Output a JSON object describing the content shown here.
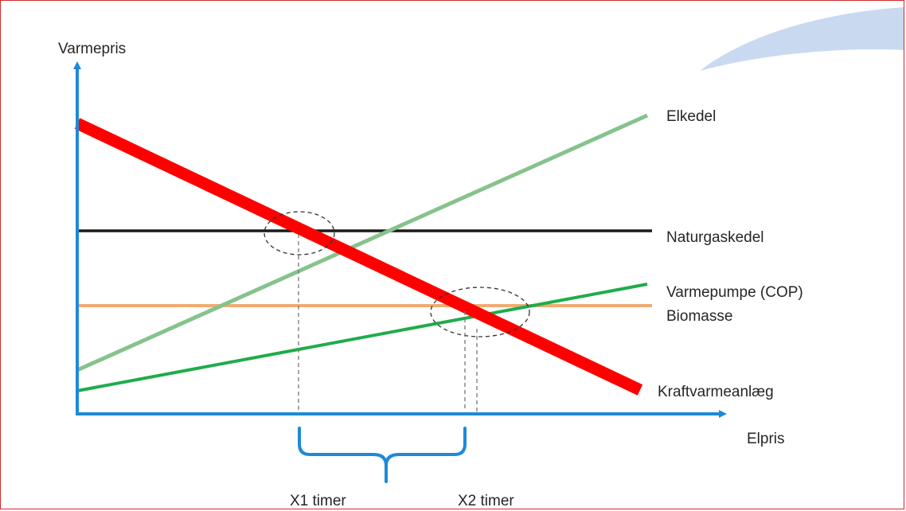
{
  "axes": {
    "y_label": "Varmepris",
    "x_label": "Elpris"
  },
  "colors": {
    "axis": "#1e8ad6",
    "frame": "#d42a2a",
    "decoration": "#c9daf0"
  },
  "lines": [
    {
      "label": "Elkedel",
      "color": "#86c38c"
    },
    {
      "label": "Naturgaskedel",
      "color": "#1a1a1a"
    },
    {
      "label": "Varmepumpe (COP)",
      "color": "#1fac4b"
    },
    {
      "label": "Biomasse",
      "color": "#f1ac73"
    },
    {
      "label": "Kraftvarmeanlæg",
      "color": "#ff0000"
    }
  ],
  "brace": {
    "left_label": "X1 timer",
    "right_label": "X2 timer"
  }
}
